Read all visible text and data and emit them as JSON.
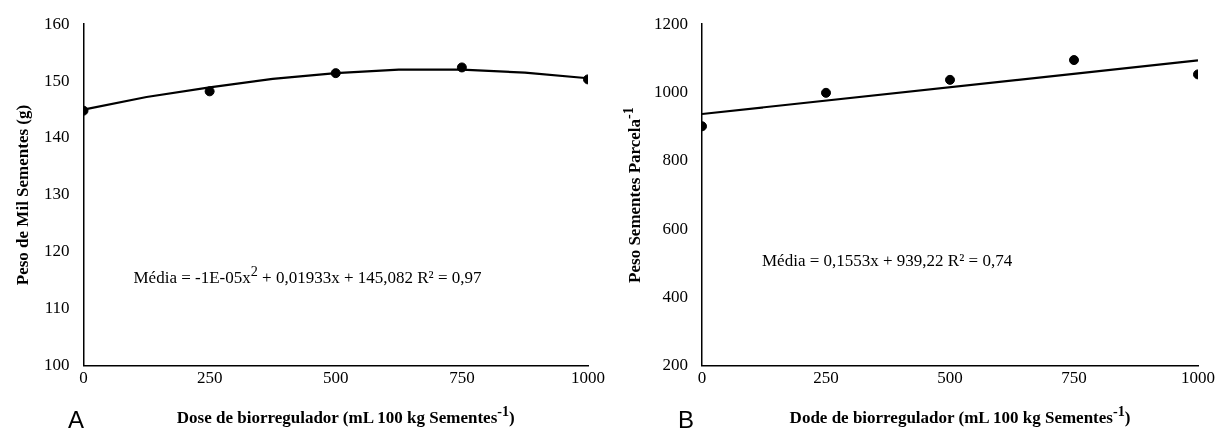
{
  "chart_data": [
    {
      "type": "scatter",
      "xlabel": "Dose de biorregulador  (mL 100 kg Sementes$^{-1}$)",
      "ylabel": "Peso de Mil Sementes (g)",
      "xlim": [
        0,
        1000
      ],
      "xticks": [
        0,
        250,
        500,
        750,
        1000
      ],
      "ylim": [
        100,
        160
      ],
      "yticks": [
        100,
        110,
        120,
        130,
        140,
        150,
        160
      ],
      "grid": false,
      "legend": false,
      "marker": "circle",
      "series": [
        {
          "type": "scatter",
          "color": "#000000",
          "x": [
            0,
            250,
            500,
            750,
            1000
          ],
          "values": [
            144.8,
            148.2,
            151.4,
            152.4,
            150.3
          ]
        },
        {
          "type": "line",
          "color": "#000000",
          "line_style": "solid",
          "marker": "none",
          "x": [
            0,
            125,
            250,
            375,
            500,
            625,
            750,
            875,
            1000
          ],
          "values": [
            145,
            147.2,
            148.9,
            150.4,
            151.4,
            152,
            152,
            151.5,
            150.5
          ]
        }
      ],
      "annotations": [
        "Média = -1E-05x$^{2}$ + 0,01933x + 145,082 R² = 0,97",
        "A"
      ]
    },
    {
      "type": "scatter",
      "xlabel": "Dode de biorregulador  (mL 100 kg Sementes$^{-1}$)",
      "ylabel": "Peso Sementes Parcela$^{-1}$",
      "xlim": [
        0,
        1000
      ],
      "xticks": [
        0,
        250,
        500,
        750,
        1000
      ],
      "ylim": [
        200,
        1200
      ],
      "yticks": [
        200,
        400,
        600,
        800,
        1000,
        1200
      ],
      "grid": false,
      "legend": false,
      "marker": "circle",
      "series": [
        {
          "type": "scatter",
          "color": "#000000",
          "x": [
            0,
            250,
            500,
            750,
            1000
          ],
          "values": [
            901,
            999,
            1037,
            1095,
            1053
          ]
        },
        {
          "type": "line",
          "color": "#000000",
          "line_style": "solid",
          "marker": "none",
          "x": [
            0,
            1000
          ],
          "values": [
            937,
            1094
          ]
        }
      ],
      "annotations": [
        "Média = 0,1553x + 939,22 R² = 0,74",
        "B"
      ]
    }
  ]
}
